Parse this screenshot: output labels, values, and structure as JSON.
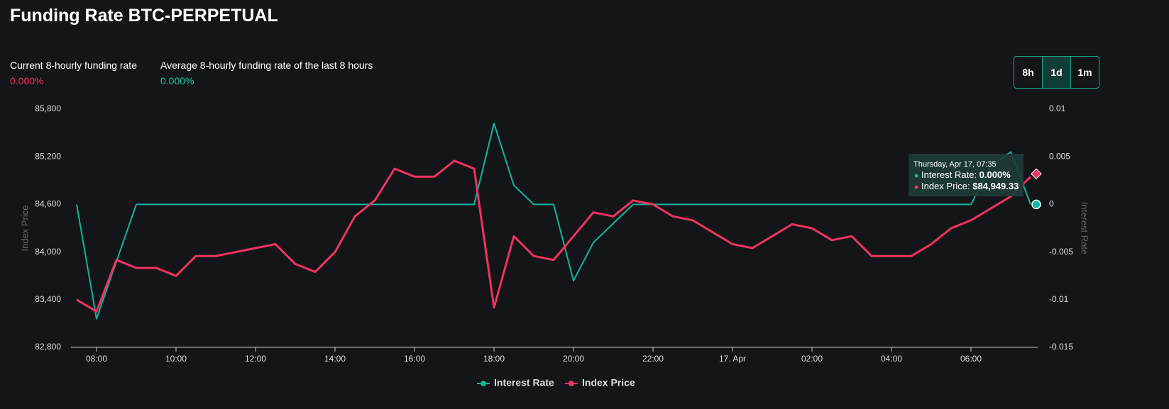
{
  "header": {
    "title": "Funding Rate BTC-PERPETUAL",
    "stats": [
      {
        "label": "Current 8-hourly funding rate",
        "value": "0.000%",
        "color": "#f0325f"
      },
      {
        "label": "Average 8-hourly funding rate of the last 8 hours",
        "value": "0.000%",
        "color": "#1fc7a1"
      }
    ],
    "buttons": [
      "8h",
      "1d",
      "1m"
    ],
    "active_button": 1
  },
  "chart_data": {
    "type": "line",
    "categories": [
      null,
      "08:00",
      null,
      null,
      null,
      "10:00",
      null,
      null,
      null,
      "12:00",
      null,
      null,
      null,
      "14:00",
      null,
      null,
      null,
      "16:00",
      null,
      null,
      null,
      "18:00",
      null,
      null,
      null,
      "20:00",
      null,
      null,
      null,
      "22:00",
      null,
      null,
      null,
      "17. Apr",
      null,
      null,
      null,
      "02:00",
      null,
      null,
      null,
      "04:00",
      null,
      null,
      null,
      "06:00",
      null,
      null,
      null
    ],
    "ylabel": "Index Price",
    "y2label": "Interest Rate",
    "ylim": [
      82800,
      85800
    ],
    "yticks": [
      {
        "value": 82800,
        "label": "82,800"
      },
      {
        "value": 83400,
        "label": "83,400"
      },
      {
        "value": 84000,
        "label": "84,000"
      },
      {
        "value": 84600,
        "label": "84,600"
      },
      {
        "value": 85200,
        "label": "85,200"
      },
      {
        "value": 85800,
        "label": "85,800"
      }
    ],
    "y2lim": [
      -0.015,
      0.01
    ],
    "y2ticks": [
      -0.015,
      -0.01,
      -0.005,
      0,
      0.005,
      0.01
    ],
    "series": [
      {
        "name": "Interest Rate",
        "color": "#12b5a0",
        "axis": "y2",
        "values": [
          0,
          -0.012,
          -0.006,
          0,
          0,
          0,
          0,
          0,
          0,
          0,
          0,
          0,
          0,
          0,
          0,
          0,
          0,
          0,
          0,
          0,
          0,
          0.0085,
          0.002,
          0,
          0,
          -0.008,
          -0.004,
          -0.002,
          0,
          0,
          0,
          0,
          0,
          0,
          0,
          0,
          0,
          0,
          0,
          0,
          0,
          0,
          0,
          0,
          0,
          0,
          0.004,
          0.0055,
          0
        ]
      },
      {
        "name": "Index Price",
        "color": "#f0325f",
        "values": [
          83400,
          83250,
          83900,
          83800,
          83800,
          83700,
          83950,
          83950,
          84000,
          84050,
          84100,
          83850,
          83750,
          84000,
          84450,
          84650,
          85050,
          84950,
          84950,
          85150,
          85050,
          83300,
          84200,
          83950,
          83900,
          84200,
          84500,
          84450,
          84650,
          84600,
          84450,
          84400,
          84250,
          84100,
          84050,
          84200,
          84350,
          84300,
          84150,
          84200,
          83950,
          83950,
          83950,
          84100,
          84300,
          84400,
          84550,
          84700,
          84949.33
        ]
      }
    ],
    "tooltip": {
      "title": "Thursday, Apr 17, 07:35",
      "rows": [
        [
          "Interest Rate: ",
          "0.000%"
        ],
        [
          "Index Price: ",
          "$84,949.33"
        ]
      ]
    }
  }
}
